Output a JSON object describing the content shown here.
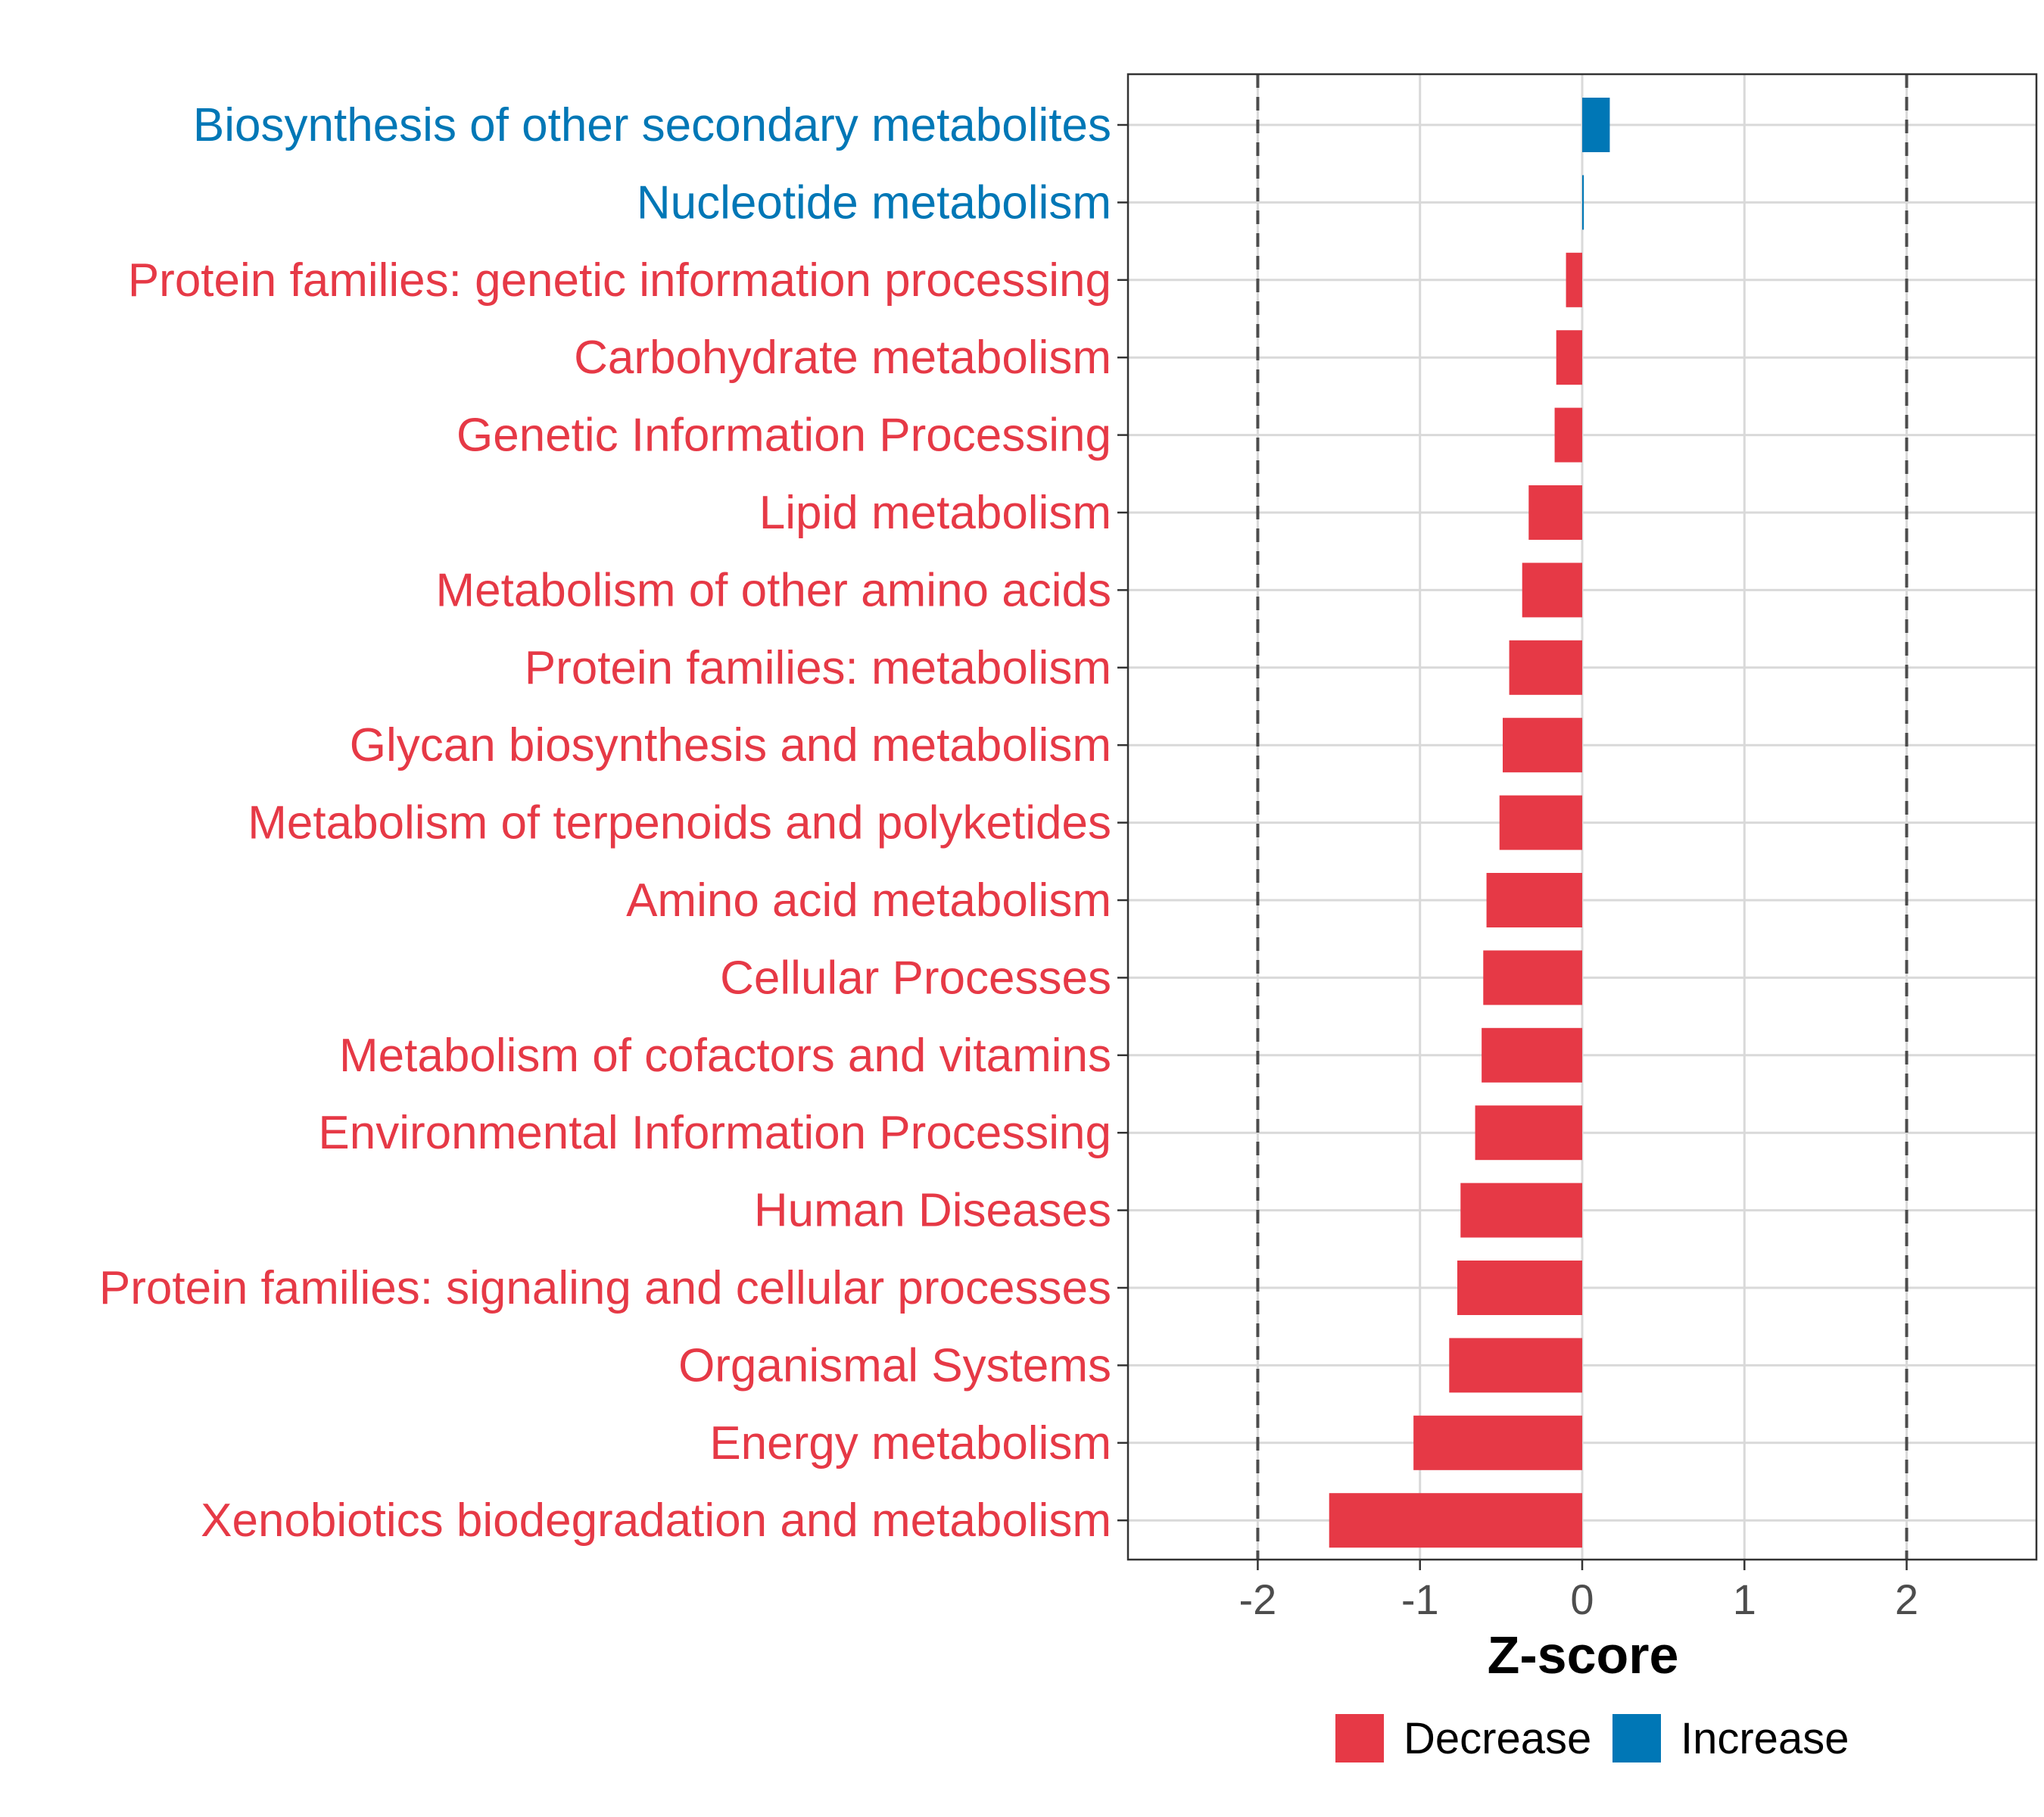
{
  "chart_data": {
    "type": "bar",
    "orientation": "horizontal",
    "categories": [
      "Biosynthesis of other secondary metabolites",
      "Nucleotide metabolism",
      "Protein families: genetic information processing",
      "Carbohydrate metabolism",
      "Genetic Information Processing",
      "Lipid metabolism",
      "Metabolism of other amino acids",
      "Protein families: metabolism",
      "Glycan biosynthesis and metabolism",
      "Metabolism of terpenoids and polyketides",
      "Amino acid metabolism",
      "Cellular Processes",
      "Metabolism of cofactors and vitamins",
      "Environmental Information Processing",
      "Human Diseases",
      "Protein families: signaling and cellular processes",
      "Organismal Systems",
      "Energy metabolism",
      "Xenobiotics biodegradation and metabolism"
    ],
    "values": [
      0.17,
      0.01,
      -0.1,
      -0.16,
      -0.17,
      -0.33,
      -0.37,
      -0.45,
      -0.49,
      -0.51,
      -0.59,
      -0.61,
      -0.62,
      -0.66,
      -0.75,
      -0.77,
      -0.82,
      -1.04,
      -1.56
    ],
    "groups": [
      "Increase",
      "Increase",
      "Decrease",
      "Decrease",
      "Decrease",
      "Decrease",
      "Decrease",
      "Decrease",
      "Decrease",
      "Decrease",
      "Decrease",
      "Decrease",
      "Decrease",
      "Decrease",
      "Decrease",
      "Decrease",
      "Decrease",
      "Decrease",
      "Decrease"
    ],
    "xlabel": "Z-score",
    "ylabel": "",
    "xlim": [
      -2.8,
      2.8
    ],
    "xticks": [
      -2,
      -1,
      0,
      1,
      2
    ],
    "xtick_labels": [
      "-2",
      "-1",
      "0",
      "1",
      "2"
    ],
    "reference_lines": [
      -2,
      2
    ],
    "grid": true,
    "legend": {
      "position": "bottom",
      "entries": [
        {
          "label": "Decrease",
          "color": "#E63946"
        },
        {
          "label": "Increase",
          "color": "#0077B6"
        }
      ]
    },
    "colors": {
      "Decrease": "#E63946",
      "Increase": "#0077B6",
      "grid": "#D9D9D9",
      "reference_line": "#4D4D4D",
      "panel_border": "#333333",
      "tick_text": "#4D4D4D"
    }
  }
}
